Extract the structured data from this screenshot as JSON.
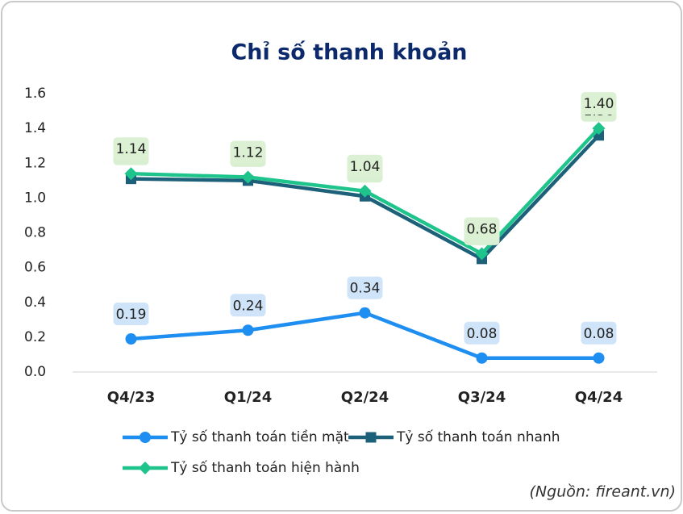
{
  "chart_data": {
    "type": "line",
    "title": "Chỉ số thanh khoản",
    "categories": [
      "Q4/23",
      "Q1/24",
      "Q2/24",
      "Q3/24",
      "Q4/24"
    ],
    "series": [
      {
        "name": "Tỷ số thanh toán tiền mặt",
        "color": "#1e8ef0",
        "marker": "circle",
        "label_bg": "#cfe4f8",
        "values": [
          0.19,
          0.24,
          0.34,
          0.08,
          0.08
        ],
        "value_labels": [
          "0.19",
          "0.24",
          "0.34",
          "0.08",
          "0.08"
        ]
      },
      {
        "name": "Tỷ số thanh toán nhanh",
        "color": "#1d6079",
        "marker": "square",
        "label_bg": "#d9efd2",
        "values": [
          1.11,
          1.1,
          1.01,
          0.65,
          1.36
        ],
        "value_labels": [
          "1.11",
          "1.10",
          "1.01",
          "0.65",
          "1.36"
        ]
      },
      {
        "name": "Tỷ số thanh toán hiện hành",
        "color": "#1fc48c",
        "marker": "diamond",
        "label_bg": "#dcf1d3",
        "values": [
          1.14,
          1.12,
          1.04,
          0.68,
          1.4
        ],
        "value_labels": [
          "1.14",
          "1.12",
          "1.04",
          "0.68",
          "1.40"
        ]
      }
    ],
    "ylim": [
      0,
      1.6
    ],
    "yticks": [
      {
        "value": 0,
        "label": "0.0"
      },
      0.2,
      0.4,
      0.6,
      0.8,
      {
        "value": 1,
        "label": "1.0"
      },
      1.2,
      1.4,
      1.6
    ],
    "grid": false,
    "legend": "bottom",
    "source": "(Nguồn: fireant.vn)"
  }
}
